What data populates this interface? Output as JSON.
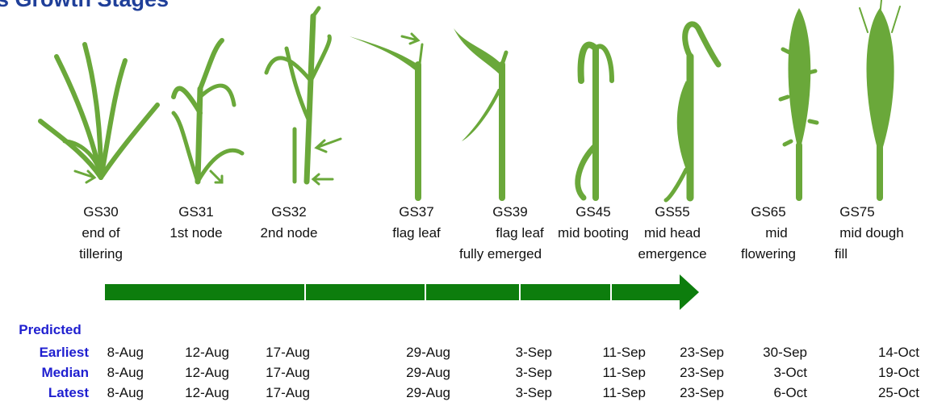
{
  "header": {
    "title": "s Growth Stages"
  },
  "stages": [
    {
      "code": "GS30",
      "description": [
        "end of",
        "tillering"
      ]
    },
    {
      "code": "GS31",
      "description": [
        "1st node"
      ]
    },
    {
      "code": "GS32",
      "description": [
        "2nd node"
      ]
    },
    {
      "code": "GS37",
      "description": [
        "flag leaf"
      ]
    },
    {
      "code": "GS39",
      "description": [
        "flag leaf",
        "fully emerged"
      ]
    },
    {
      "code": "GS45",
      "description": [
        "mid booting"
      ]
    },
    {
      "code": "GS55",
      "description": [
        "mid head",
        "emergence"
      ]
    },
    {
      "code": "GS65",
      "description": [
        "mid",
        "flowering"
      ]
    },
    {
      "code": "GS75",
      "description": [
        "mid dough",
        "fill"
      ]
    }
  ],
  "dates": {
    "heading": "Predicted",
    "rows": [
      {
        "label": "Earliest",
        "values": [
          "8-Aug",
          "12-Aug",
          "17-Aug",
          "29-Aug",
          "3-Sep",
          "11-Sep",
          "23-Sep",
          "30-Sep",
          "14-Oct"
        ]
      },
      {
        "label": "Median",
        "values": [
          "8-Aug",
          "12-Aug",
          "17-Aug",
          "29-Aug",
          "3-Sep",
          "11-Sep",
          "23-Sep",
          "3-Oct",
          "19-Oct"
        ]
      },
      {
        "label": "Latest",
        "values": [
          "8-Aug",
          "12-Aug",
          "17-Aug",
          "29-Aug",
          "3-Sep",
          "11-Sep",
          "23-Sep",
          "6-Oct",
          "25-Oct"
        ]
      }
    ]
  }
}
